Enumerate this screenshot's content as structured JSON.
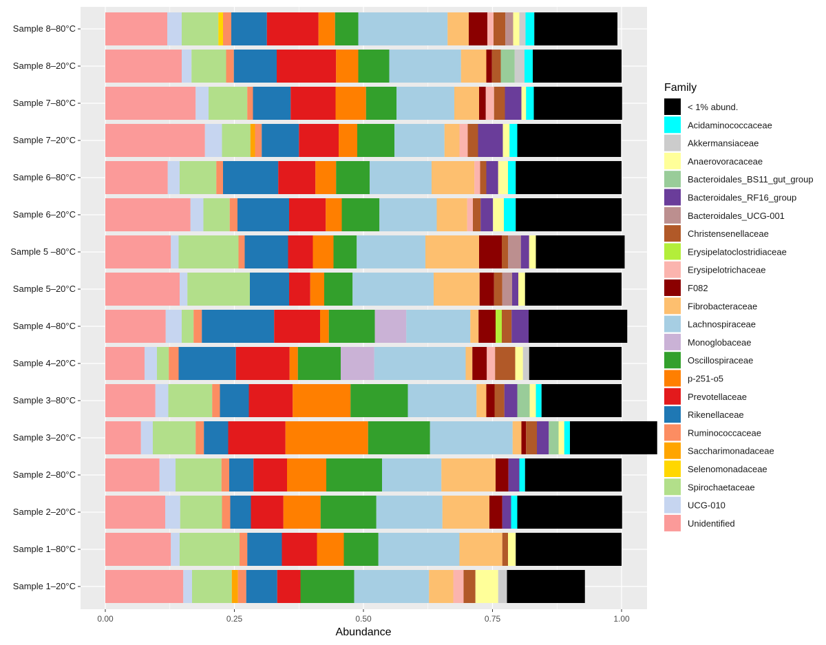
{
  "chart_data": {
    "type": "bar",
    "orientation": "horizontal",
    "stacked": true,
    "title": "",
    "xlabel": "Abundance",
    "ylabel": "",
    "xlim": [
      0,
      1
    ],
    "xticks": [
      "0.00",
      "0.25",
      "0.50",
      "0.75",
      "1.00"
    ],
    "xtick_values": [
      0,
      0.25,
      0.5,
      0.75,
      1.0
    ],
    "grid": true,
    "legend_position": "right",
    "legend_title": "Family",
    "families": [
      {
        "name": "< 1% abund.",
        "color": "#000000"
      },
      {
        "name": "Acidaminococcaceae",
        "color": "#00FFFF"
      },
      {
        "name": "Akkermansiaceae",
        "color": "#CCCCCC"
      },
      {
        "name": "Anaerovoracaceae",
        "color": "#FFFF99"
      },
      {
        "name": "Bacteroidales_BS11_gut_group",
        "color": "#99CC99"
      },
      {
        "name": "Bacteroidales_RF16_group",
        "color": "#6A3D9A"
      },
      {
        "name": "Bacteroidales_UCG-001",
        "color": "#BC8F8F"
      },
      {
        "name": "Christensenellaceae",
        "color": "#B15928"
      },
      {
        "name": "Erysipelatoclostridiaceae",
        "color": "#B3EE3A"
      },
      {
        "name": "Erysipelotrichaceae",
        "color": "#FBB4AE"
      },
      {
        "name": "F082",
        "color": "#8B0000"
      },
      {
        "name": "Fibrobacteraceae",
        "color": "#FDBF6F"
      },
      {
        "name": "Lachnospiraceae",
        "color": "#A6CEE3"
      },
      {
        "name": "Monoglobaceae",
        "color": "#CAB2D6"
      },
      {
        "name": "Oscillospiraceae",
        "color": "#33A02C"
      },
      {
        "name": "p-251-o5",
        "color": "#FF7F00"
      },
      {
        "name": "Prevotellaceae",
        "color": "#E31A1C"
      },
      {
        "name": "Rikenellaceae",
        "color": "#1F78B4"
      },
      {
        "name": "Ruminococcaceae",
        "color": "#FC8D62"
      },
      {
        "name": "Saccharimonadaceae",
        "color": "#FFA500"
      },
      {
        "name": "Selenomonadaceae",
        "color": "#FFD700"
      },
      {
        "name": "Spirochaetaceae",
        "color": "#B2DF8A"
      },
      {
        "name": "UCG-010",
        "color": "#C6D5F0"
      },
      {
        "name": "Unidentified",
        "color": "#FB9A99"
      }
    ],
    "stack_order_left_to_right": [
      "Unidentified",
      "UCG-010",
      "Spirochaetaceae",
      "Selenomonadaceae",
      "Saccharimonadaceae",
      "Ruminococcaceae",
      "Rikenellaceae",
      "Prevotellaceae",
      "p-251-o5",
      "Oscillospiraceae",
      "Monoglobaceae",
      "Lachnospiraceae",
      "Fibrobacteraceae",
      "F082",
      "Erysipelotrichaceae",
      "Erysipelatoclostridiaceae",
      "Christensenellaceae",
      "Bacteroidales_UCG-001",
      "Bacteroidales_RF16_group",
      "Bacteroidales_BS11_gut_group",
      "Anaerovoracaceae",
      "Akkermansiaceae",
      "Acidaminococcaceae",
      "< 1% abund."
    ],
    "samples": [
      {
        "name": "Sample 8–80°C",
        "values": {
          "Unidentified": 0.12,
          "UCG-010": 0.028,
          "Spirochaetaceae": 0.071,
          "Selenomonadaceae": 0.009,
          "Saccharimonadaceae": 0.0,
          "Ruminococcaceae": 0.016,
          "Rikenellaceae": 0.069,
          "Prevotellaceae": 0.1,
          "p-251-o5": 0.032,
          "Oscillospiraceae": 0.045,
          "Monoglobaceae": 0.0,
          "Lachnospiraceae": 0.173,
          "Fibrobacteraceae": 0.041,
          "F082": 0.036,
          "Erysipelotrichaceae": 0.012,
          "Erysipelatoclostridiaceae": 0.0,
          "Christensenellaceae": 0.023,
          "Bacteroidales_UCG-001": 0.015,
          "Bacteroidales_RF16_group": 0.0,
          "Bacteroidales_BS11_gut_group": 0.0,
          "Anaerovoracaceae": 0.012,
          "Akkermansiaceae": 0.012,
          "Acidaminococcaceae": 0.017,
          "< 1% abund.": 0.161
        }
      },
      {
        "name": "Sample 8–20°C",
        "values": {
          "Unidentified": 0.148,
          "UCG-010": 0.019,
          "Spirochaetaceae": 0.067,
          "Selenomonadaceae": 0.0,
          "Saccharimonadaceae": 0.0,
          "Ruminococcaceae": 0.015,
          "Rikenellaceae": 0.083,
          "Prevotellaceae": 0.115,
          "p-251-o5": 0.043,
          "Oscillospiraceae": 0.06,
          "Monoglobaceae": 0.0,
          "Lachnospiraceae": 0.139,
          "Fibrobacteraceae": 0.049,
          "F082": 0.011,
          "Erysipelotrichaceae": 0.0,
          "Erysipelatoclostridiaceae": 0.0,
          "Christensenellaceae": 0.017,
          "Bacteroidales_UCG-001": 0.0,
          "Bacteroidales_RF16_group": 0.0,
          "Bacteroidales_BS11_gut_group": 0.027,
          "Anaerovoracaceae": 0.0,
          "Akkermansiaceae": 0.019,
          "Acidaminococcaceae": 0.016,
          "< 1% abund.": 0.172
        }
      },
      {
        "name": "Sample 7–80°C",
        "values": {
          "Unidentified": 0.175,
          "UCG-010": 0.025,
          "Spirochaetaceae": 0.075,
          "Selenomonadaceae": 0.0,
          "Saccharimonadaceae": 0.0,
          "Ruminococcaceae": 0.011,
          "Rikenellaceae": 0.073,
          "Prevotellaceae": 0.087,
          "p-251-o5": 0.059,
          "Oscillospiraceae": 0.059,
          "Monoglobaceae": 0.0,
          "Lachnospiraceae": 0.112,
          "Fibrobacteraceae": 0.048,
          "F082": 0.013,
          "Erysipelotrichaceae": 0.016,
          "Erysipelatoclostridiaceae": 0.0,
          "Christensenellaceae": 0.021,
          "Bacteroidales_UCG-001": 0.0,
          "Bacteroidales_RF16_group": 0.032,
          "Bacteroidales_BS11_gut_group": 0.0,
          "Anaerovoracaceae": 0.009,
          "Akkermansiaceae": 0.0,
          "Acidaminococcaceae": 0.015,
          "< 1% abund.": 0.171
        }
      },
      {
        "name": "Sample 7–20°C",
        "values": {
          "Unidentified": 0.193,
          "UCG-010": 0.033,
          "Spirochaetaceae": 0.055,
          "Selenomonadaceae": 0.0,
          "Saccharimonadaceae": 0.009,
          "Ruminococcaceae": 0.013,
          "Rikenellaceae": 0.072,
          "Prevotellaceae": 0.077,
          "p-251-o5": 0.036,
          "Oscillospiraceae": 0.072,
          "Monoglobaceae": 0.0,
          "Lachnospiraceae": 0.097,
          "Fibrobacteraceae": 0.029,
          "F082": 0.0,
          "Erysipelotrichaceae": 0.016,
          "Erysipelatoclostridiaceae": 0.0,
          "Christensenellaceae": 0.02,
          "Bacteroidales_UCG-001": 0.0,
          "Bacteroidales_RF16_group": 0.048,
          "Bacteroidales_BS11_gut_group": 0.0,
          "Anaerovoracaceae": 0.013,
          "Akkermansiaceae": 0.0,
          "Acidaminococcaceae": 0.015,
          "< 1% abund.": 0.201
        }
      },
      {
        "name": "Sample 6–80°C",
        "values": {
          "Unidentified": 0.121,
          "UCG-010": 0.023,
          "Spirochaetaceae": 0.071,
          "Selenomonadaceae": 0.0,
          "Saccharimonadaceae": 0.0,
          "Ruminococcaceae": 0.013,
          "Rikenellaceae": 0.107,
          "Prevotellaceae": 0.072,
          "p-251-o5": 0.04,
          "Oscillospiraceae": 0.065,
          "Monoglobaceae": 0.0,
          "Lachnospiraceae": 0.12,
          "Fibrobacteraceae": 0.083,
          "F082": 0.0,
          "Erysipelotrichaceae": 0.011,
          "Erysipelatoclostridiaceae": 0.0,
          "Christensenellaceae": 0.012,
          "Bacteroidales_UCG-001": 0.0,
          "Bacteroidales_RF16_group": 0.023,
          "Bacteroidales_BS11_gut_group": 0.0,
          "Anaerovoracaceae": 0.019,
          "Akkermansiaceae": 0.0,
          "Acidaminococcaceae": 0.015,
          "< 1% abund.": 0.205
        }
      },
      {
        "name": "Sample 6–20°C",
        "values": {
          "Unidentified": 0.165,
          "UCG-010": 0.025,
          "Spirochaetaceae": 0.051,
          "Selenomonadaceae": 0.0,
          "Saccharimonadaceae": 0.0,
          "Ruminococcaceae": 0.015,
          "Rikenellaceae": 0.1,
          "Prevotellaceae": 0.071,
          "p-251-o5": 0.031,
          "Oscillospiraceae": 0.073,
          "Monoglobaceae": 0.0,
          "Lachnospiraceae": 0.111,
          "Fibrobacteraceae": 0.059,
          "F082": 0.0,
          "Erysipelotrichaceae": 0.011,
          "Erysipelatoclostridiaceae": 0.0,
          "Christensenellaceae": 0.015,
          "Bacteroidales_UCG-001": 0.0,
          "Bacteroidales_RF16_group": 0.024,
          "Bacteroidales_BS11_gut_group": 0.0,
          "Anaerovoracaceae": 0.021,
          "Akkermansiaceae": 0.0,
          "Acidaminococcaceae": 0.023,
          "< 1% abund.": 0.205
        }
      },
      {
        "name": "Sample 5 –80°C",
        "values": {
          "Unidentified": 0.127,
          "UCG-010": 0.015,
          "Spirochaetaceae": 0.116,
          "Selenomonadaceae": 0.0,
          "Saccharimonadaceae": 0.0,
          "Ruminococcaceae": 0.012,
          "Rikenellaceae": 0.084,
          "Prevotellaceae": 0.048,
          "p-251-o5": 0.04,
          "Oscillospiraceae": 0.045,
          "Monoglobaceae": 0.0,
          "Lachnospiraceae": 0.133,
          "Fibrobacteraceae": 0.104,
          "F082": 0.044,
          "Erysipelotrichaceae": 0.0,
          "Erysipelatoclostridiaceae": 0.0,
          "Christensenellaceae": 0.012,
          "Bacteroidales_UCG-001": 0.025,
          "Bacteroidales_RF16_group": 0.016,
          "Bacteroidales_BS11_gut_group": 0.0,
          "Anaerovoracaceae": 0.013,
          "Akkermansiaceae": 0.0,
          "Acidaminococcaceae": 0.0,
          "< 1% abund.": 0.172
        }
      },
      {
        "name": "Sample 5–20°C",
        "values": {
          "Unidentified": 0.144,
          "UCG-010": 0.015,
          "Spirochaetaceae": 0.121,
          "Selenomonadaceae": 0.0,
          "Saccharimonadaceae": 0.0,
          "Ruminococcaceae": 0.0,
          "Rikenellaceae": 0.076,
          "Prevotellaceae": 0.041,
          "p-251-o5": 0.027,
          "Oscillospiraceae": 0.055,
          "Monoglobaceae": 0.0,
          "Lachnospiraceae": 0.157,
          "Fibrobacteraceae": 0.089,
          "F082": 0.028,
          "Erysipelotrichaceae": 0.0,
          "Erysipelatoclostridiaceae": 0.0,
          "Christensenellaceae": 0.016,
          "Bacteroidales_UCG-001": 0.019,
          "Bacteroidales_RF16_group": 0.012,
          "Bacteroidales_BS11_gut_group": 0.0,
          "Anaerovoracaceae": 0.013,
          "Akkermansiaceae": 0.0,
          "Acidaminococcaceae": 0.0,
          "< 1% abund.": 0.187
        }
      },
      {
        "name": "Sample 4–80°C",
        "values": {
          "Unidentified": 0.117,
          "UCG-010": 0.031,
          "Spirochaetaceae": 0.023,
          "Selenomonadaceae": 0.0,
          "Saccharimonadaceae": 0.0,
          "Ruminococcaceae": 0.016,
          "Rikenellaceae": 0.14,
          "Prevotellaceae": 0.089,
          "p-251-o5": 0.017,
          "Oscillospiraceae": 0.089,
          "Monoglobaceae": 0.061,
          "Lachnospiraceae": 0.124,
          "Fibrobacteraceae": 0.016,
          "F082": 0.033,
          "Erysipelotrichaceae": 0.0,
          "Erysipelatoclostridiaceae": 0.012,
          "Christensenellaceae": 0.019,
          "Bacteroidales_UCG-001": 0.0,
          "Bacteroidales_RF16_group": 0.033,
          "Bacteroidales_BS11_gut_group": 0.0,
          "Anaerovoracaceae": 0.0,
          "Akkermansiaceae": 0.0,
          "Acidaminococcaceae": 0.0,
          "< 1% abund.": 0.191
        }
      },
      {
        "name": "Sample 4–20°C",
        "values": {
          "Unidentified": 0.076,
          "UCG-010": 0.024,
          "Spirochaetaceae": 0.023,
          "Selenomonadaceae": 0.0,
          "Saccharimonadaceae": 0.0,
          "Ruminococcaceae": 0.019,
          "Rikenellaceae": 0.111,
          "Prevotellaceae": 0.104,
          "p-251-o5": 0.016,
          "Oscillospiraceae": 0.083,
          "Monoglobaceae": 0.065,
          "Lachnospiraceae": 0.177,
          "Fibrobacteraceae": 0.013,
          "F082": 0.028,
          "Erysipelotrichaceae": 0.016,
          "Erysipelatoclostridiaceae": 0.0,
          "Christensenellaceae": 0.039,
          "Bacteroidales_UCG-001": 0.0,
          "Bacteroidales_RF16_group": 0.0,
          "Bacteroidales_BS11_gut_group": 0.0,
          "Anaerovoracaceae": 0.015,
          "Akkermansiaceae": 0.012,
          "Acidaminococcaceae": 0.0,
          "< 1% abund.": 0.179
        }
      },
      {
        "name": "Sample 3–80°C",
        "values": {
          "Unidentified": 0.097,
          "UCG-010": 0.025,
          "Spirochaetaceae": 0.085,
          "Selenomonadaceae": 0.0,
          "Saccharimonadaceae": 0.0,
          "Ruminococcaceae": 0.015,
          "Rikenellaceae": 0.056,
          "Prevotellaceae": 0.085,
          "p-251-o5": 0.112,
          "Oscillospiraceae": 0.111,
          "Monoglobaceae": 0.0,
          "Lachnospiraceae": 0.133,
          "Fibrobacteraceae": 0.019,
          "F082": 0.016,
          "Erysipelotrichaceae": 0.0,
          "Erysipelatoclostridiaceae": 0.0,
          "Christensenellaceae": 0.019,
          "Bacteroidales_UCG-001": 0.0,
          "Bacteroidales_RF16_group": 0.025,
          "Bacteroidales_BS11_gut_group": 0.024,
          "Anaerovoracaceae": 0.012,
          "Akkermansiaceae": 0.0,
          "Acidaminococcaceae": 0.011,
          "< 1% abund.": 0.155
        }
      },
      {
        "name": "Sample 3–20°C",
        "values": {
          "Unidentified": 0.069,
          "UCG-010": 0.023,
          "Spirochaetaceae": 0.083,
          "Selenomonadaceae": 0.0,
          "Saccharimonadaceae": 0.0,
          "Ruminococcaceae": 0.016,
          "Rikenellaceae": 0.047,
          "Prevotellaceae": 0.111,
          "p-251-o5": 0.16,
          "Oscillospiraceae": 0.12,
          "Monoglobaceae": 0.0,
          "Lachnospiraceae": 0.16,
          "Fibrobacteraceae": 0.017,
          "F082": 0.009,
          "Erysipelotrichaceae": 0.0,
          "Erysipelatoclostridiaceae": 0.0,
          "Christensenellaceae": 0.021,
          "Bacteroidales_UCG-001": 0.0,
          "Bacteroidales_RF16_group": 0.023,
          "Bacteroidales_BS11_gut_group": 0.019,
          "Anaerovoracaceae": 0.011,
          "Akkermansiaceae": 0.0,
          "Acidaminococcaceae": 0.011,
          "< 1% abund.": 0.169
        }
      },
      {
        "name": "Sample 2–80°C",
        "values": {
          "Unidentified": 0.105,
          "UCG-010": 0.031,
          "Spirochaetaceae": 0.089,
          "Selenomonadaceae": 0.0,
          "Saccharimonadaceae": 0.0,
          "Ruminococcaceae": 0.015,
          "Rikenellaceae": 0.047,
          "Prevotellaceae": 0.065,
          "p-251-o5": 0.076,
          "Oscillospiraceae": 0.108,
          "Monoglobaceae": 0.0,
          "Lachnospiraceae": 0.115,
          "Fibrobacteraceae": 0.105,
          "F082": 0.025,
          "Erysipelotrichaceae": 0.0,
          "Erysipelatoclostridiaceae": 0.0,
          "Christensenellaceae": 0.0,
          "Bacteroidales_UCG-001": 0.0,
          "Bacteroidales_RF16_group": 0.021,
          "Bacteroidales_BS11_gut_group": 0.0,
          "Anaerovoracaceae": 0.0,
          "Akkermansiaceae": 0.0,
          "Acidaminococcaceae": 0.011,
          "< 1% abund.": 0.187
        }
      },
      {
        "name": "Sample 2–20°C",
        "values": {
          "Unidentified": 0.116,
          "UCG-010": 0.029,
          "Spirochaetaceae": 0.081,
          "Selenomonadaceae": 0.0,
          "Saccharimonadaceae": 0.0,
          "Ruminococcaceae": 0.016,
          "Rikenellaceae": 0.04,
          "Prevotellaceae": 0.063,
          "p-251-o5": 0.072,
          "Oscillospiraceae": 0.108,
          "Monoglobaceae": 0.0,
          "Lachnospiraceae": 0.128,
          "Fibrobacteraceae": 0.091,
          "F082": 0.025,
          "Erysipelotrichaceae": 0.0,
          "Erysipelatoclostridiaceae": 0.0,
          "Christensenellaceae": 0.0,
          "Bacteroidales_UCG-001": 0.0,
          "Bacteroidales_RF16_group": 0.017,
          "Bacteroidales_BS11_gut_group": 0.0,
          "Anaerovoracaceae": 0.0,
          "Akkermansiaceae": 0.0,
          "Acidaminococcaceae": 0.012,
          "< 1% abund.": 0.203
        }
      },
      {
        "name": "Sample 1–80°C",
        "values": {
          "Unidentified": 0.127,
          "UCG-010": 0.017,
          "Spirochaetaceae": 0.116,
          "Selenomonadaceae": 0.0,
          "Saccharimonadaceae": 0.0,
          "Ruminococcaceae": 0.015,
          "Rikenellaceae": 0.067,
          "Prevotellaceae": 0.068,
          "p-251-o5": 0.052,
          "Oscillospiraceae": 0.067,
          "Monoglobaceae": 0.0,
          "Lachnospiraceae": 0.157,
          "Fibrobacteraceae": 0.083,
          "F082": 0.0,
          "Erysipelotrichaceae": 0.0,
          "Erysipelatoclostridiaceae": 0.0,
          "Christensenellaceae": 0.011,
          "Bacteroidales_UCG-001": 0.0,
          "Bacteroidales_RF16_group": 0.0,
          "Bacteroidales_BS11_gut_group": 0.0,
          "Anaerovoracaceae": 0.015,
          "Akkermansiaceae": 0.0,
          "Acidaminococcaceae": 0.0,
          "< 1% abund.": 0.205
        }
      },
      {
        "name": "Sample 1–20°C",
        "values": {
          "Unidentified": 0.151,
          "UCG-010": 0.017,
          "Spirochaetaceae": 0.077,
          "Selenomonadaceae": 0.0,
          "Saccharimonadaceae": 0.012,
          "Ruminococcaceae": 0.016,
          "Rikenellaceae": 0.06,
          "Prevotellaceae": 0.045,
          "p-251-o5": 0.0,
          "Oscillospiraceae": 0.104,
          "Monoglobaceae": 0.0,
          "Lachnospiraceae": 0.145,
          "Fibrobacteraceae": 0.047,
          "F082": 0.0,
          "Erysipelotrichaceae": 0.02,
          "Erysipelatoclostridiaceae": 0.0,
          "Christensenellaceae": 0.023,
          "Bacteroidales_UCG-001": 0.0,
          "Bacteroidales_RF16_group": 0.0,
          "Bacteroidales_BS11_gut_group": 0.0,
          "Anaerovoracaceae": 0.044,
          "Akkermansiaceae": 0.017,
          "Acidaminococcaceae": 0.0,
          "< 1% abund.": 0.151
        }
      }
    ]
  }
}
